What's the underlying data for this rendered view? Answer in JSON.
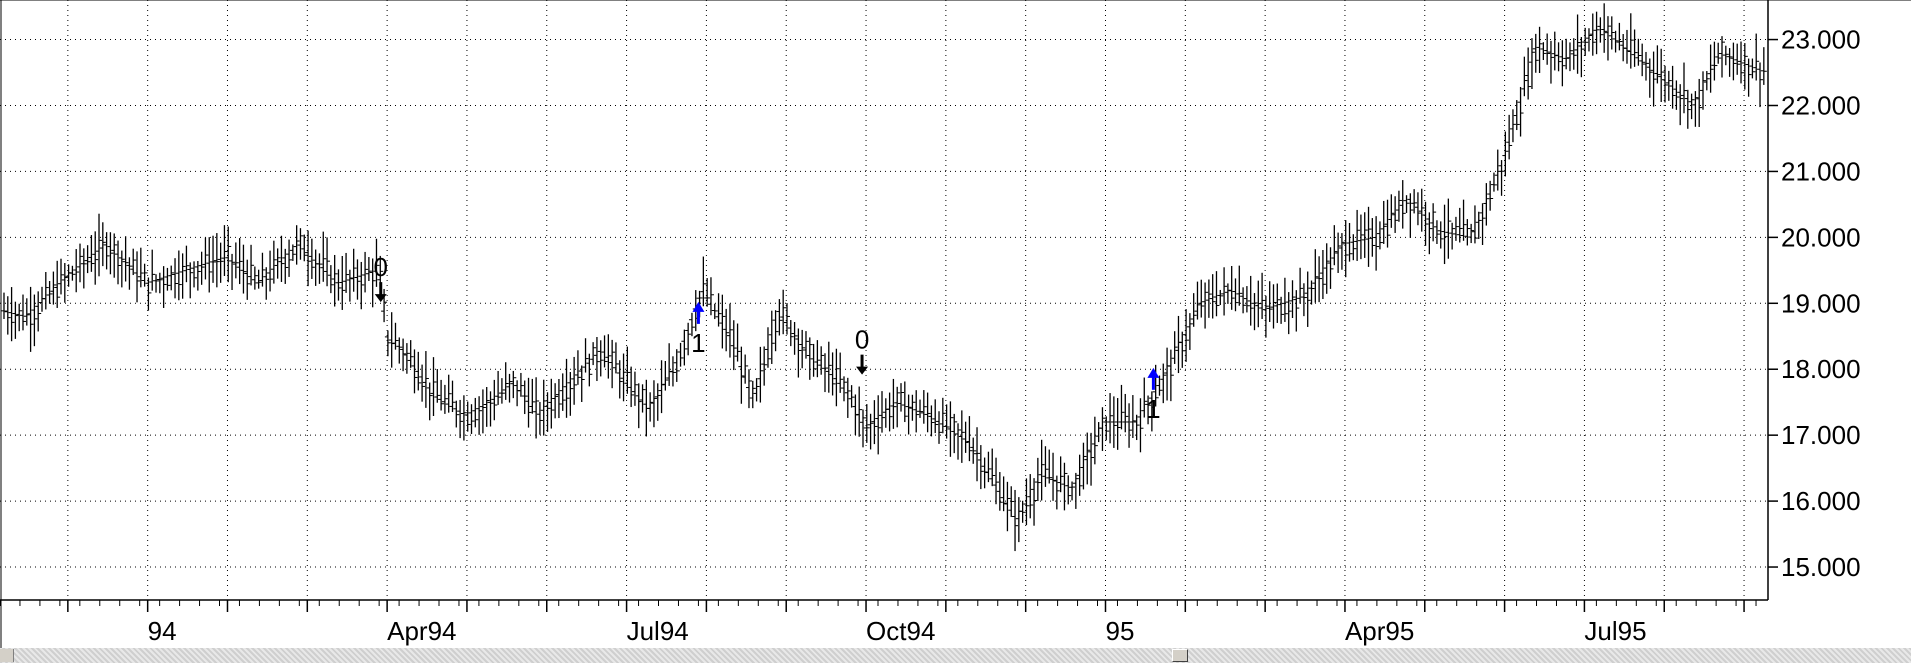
{
  "chart_data": {
    "type": "ohlc",
    "y_ticks": [
      "23.000",
      "22.000",
      "21.000",
      "20.000",
      "19.000",
      "18.000",
      "17.000",
      "16.000",
      "15.000"
    ],
    "y_tick_values": [
      23,
      22,
      21,
      20,
      19,
      18,
      17,
      16,
      15
    ],
    "ylim": [
      14.5,
      23.6
    ],
    "x_ticks": [
      "94",
      "Apr94",
      "Jul94",
      "Oct94",
      "95",
      "Apr95",
      "Jul95"
    ],
    "x_tick_months": [
      0,
      3,
      6,
      9,
      12,
      15,
      18
    ],
    "xlim_months": [
      -1.85,
      20.3
    ],
    "grid": true,
    "price_anchors": {
      "months": [
        -1.85,
        -1.5,
        -1.0,
        -0.5,
        0.0,
        0.5,
        1.0,
        1.4,
        1.9,
        2.4,
        2.9,
        3.0,
        3.2,
        3.6,
        4.0,
        4.3,
        4.6,
        4.9,
        5.3,
        5.7,
        6.0,
        6.3,
        6.6,
        6.95,
        7.3,
        7.6,
        7.9,
        8.3,
        8.6,
        8.8,
        9.0,
        9.4,
        9.8,
        10.3,
        10.9,
        11.2,
        11.6,
        12.0,
        12.4,
        12.8,
        13.2,
        13.6,
        14.0,
        14.5,
        15.0,
        15.4,
        15.8,
        16.2,
        16.6,
        17.0,
        17.4,
        17.8,
        18.2,
        18.6,
        19.0,
        19.4,
        19.7,
        20.3
      ],
      "values": [
        18.9,
        18.8,
        19.4,
        19.9,
        19.3,
        19.5,
        19.7,
        19.3,
        19.9,
        19.3,
        19.5,
        18.5,
        18.3,
        17.6,
        17.3,
        17.5,
        17.8,
        17.3,
        17.8,
        18.3,
        17.8,
        17.4,
        18.0,
        19.2,
        18.5,
        17.5,
        18.9,
        18.2,
        17.9,
        17.6,
        17.1,
        17.5,
        17.3,
        16.9,
        15.7,
        16.4,
        16.2,
        17.2,
        17.2,
        18.0,
        19.0,
        19.2,
        18.9,
        19.1,
        19.9,
        20.0,
        20.6,
        20.1,
        20.0,
        21.2,
        22.9,
        22.7,
        23.2,
        22.8,
        22.4,
        22.0,
        22.8,
        22.5
      ]
    },
    "signals": [
      {
        "label": "0",
        "direction": "down",
        "month": 2.92,
        "value": 19.2,
        "color": "#000000"
      },
      {
        "label": "1",
        "direction": "up",
        "month": 6.9,
        "value": 18.9,
        "color": "#0000ff"
      },
      {
        "label": "0",
        "direction": "down",
        "month": 8.95,
        "value": 18.1,
        "color": "#000000"
      },
      {
        "label": "1",
        "direction": "up",
        "month": 12.6,
        "value": 17.9,
        "color": "#0000ff"
      }
    ]
  }
}
